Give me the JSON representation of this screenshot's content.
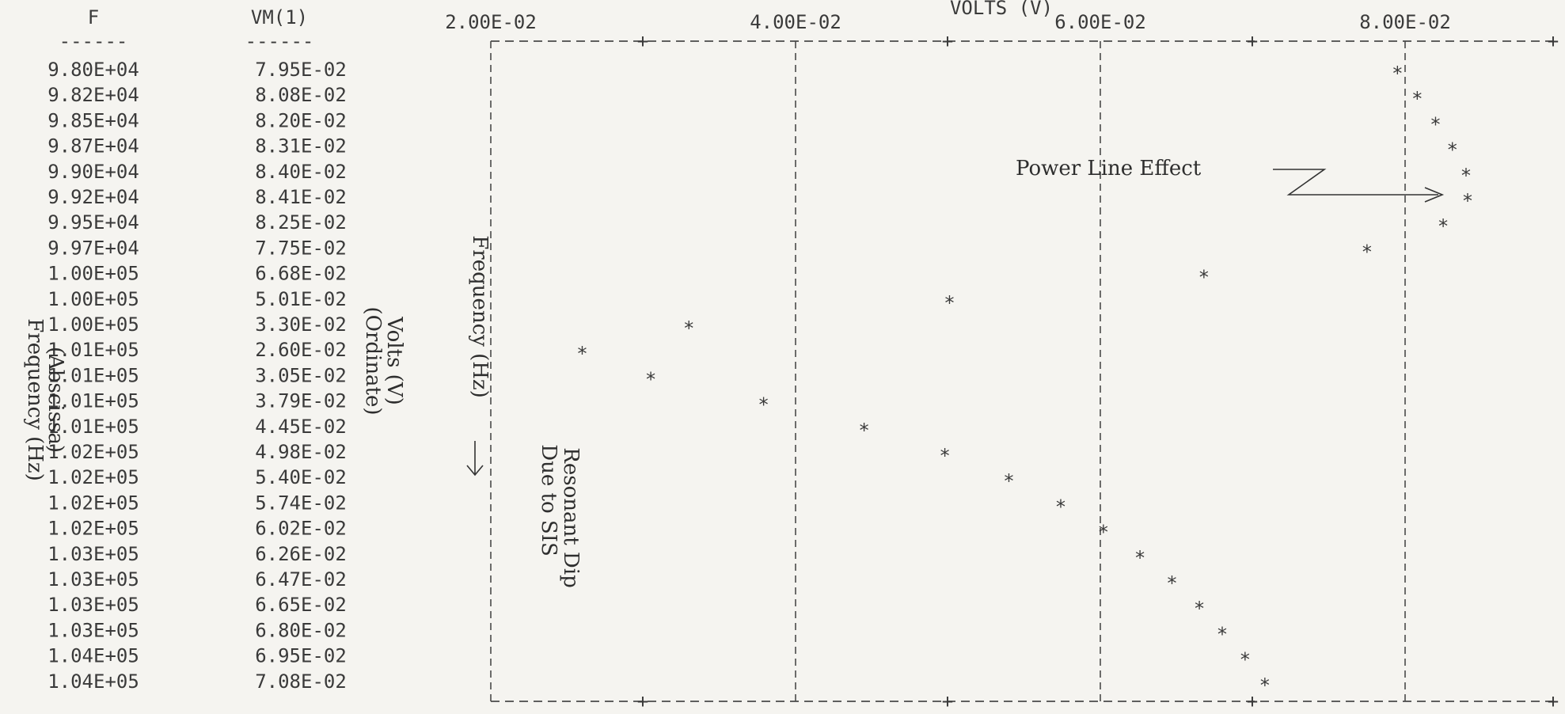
{
  "chart_data": {
    "type": "scatter",
    "title": "VOLTS (V)",
    "columns": {
      "freq": "F",
      "volts": "VM(1)",
      "rule": "------"
    },
    "x_ticks": [
      "2.00E-02",
      "4.00E-02",
      "6.00E-02",
      "8.00E-02"
    ],
    "xlim": [
      0.02,
      0.09
    ],
    "marker": "*",
    "rows": [
      {
        "f": "9.80E+04",
        "v": "7.95E-02",
        "value": 0.0795
      },
      {
        "f": "9.82E+04",
        "v": "8.08E-02",
        "value": 0.0808
      },
      {
        "f": "9.85E+04",
        "v": "8.20E-02",
        "value": 0.082
      },
      {
        "f": "9.87E+04",
        "v": "8.31E-02",
        "value": 0.0831
      },
      {
        "f": "9.90E+04",
        "v": "8.40E-02",
        "value": 0.084
      },
      {
        "f": "9.92E+04",
        "v": "8.41E-02",
        "value": 0.0841
      },
      {
        "f": "9.95E+04",
        "v": "8.25E-02",
        "value": 0.0825
      },
      {
        "f": "9.97E+04",
        "v": "7.75E-02",
        "value": 0.0775
      },
      {
        "f": "1.00E+05",
        "v": "6.68E-02",
        "value": 0.0668
      },
      {
        "f": "1.00E+05",
        "v": "5.01E-02",
        "value": 0.0501
      },
      {
        "f": "1.00E+05",
        "v": "3.30E-02",
        "value": 0.033
      },
      {
        "f": "1.01E+05",
        "v": "2.60E-02",
        "value": 0.026
      },
      {
        "f": "1.01E+05",
        "v": "3.05E-02",
        "value": 0.0305
      },
      {
        "f": "1.01E+05",
        "v": "3.79E-02",
        "value": 0.0379
      },
      {
        "f": "1.01E+05",
        "v": "4.45E-02",
        "value": 0.0445
      },
      {
        "f": "1.02E+05",
        "v": "4.98E-02",
        "value": 0.0498
      },
      {
        "f": "1.02E+05",
        "v": "5.40E-02",
        "value": 0.054
      },
      {
        "f": "1.02E+05",
        "v": "5.74E-02",
        "value": 0.0574
      },
      {
        "f": "1.02E+05",
        "v": "6.02E-02",
        "value": 0.0602
      },
      {
        "f": "1.03E+05",
        "v": "6.26E-02",
        "value": 0.0626
      },
      {
        "f": "1.03E+05",
        "v": "6.47E-02",
        "value": 0.0647
      },
      {
        "f": "1.03E+05",
        "v": "6.65E-02",
        "value": 0.0665
      },
      {
        "f": "1.03E+05",
        "v": "6.80E-02",
        "value": 0.068
      },
      {
        "f": "1.04E+05",
        "v": "6.95E-02",
        "value": 0.0695
      },
      {
        "f": "1.04E+05",
        "v": "7.08E-02",
        "value": 0.0708
      }
    ],
    "annotations": {
      "abscissa_line1": "Frequency (Hz)",
      "abscissa_line2": "(Abscissa)",
      "ordinate_line1": "Volts (V)",
      "ordinate_line2": "(Ordinate)",
      "frequency_axis": "Frequency (Hz)",
      "dip_line1": "Resonant Dip",
      "dip_line2": "Due to SIS",
      "power_line": "Power Line Effect"
    }
  }
}
